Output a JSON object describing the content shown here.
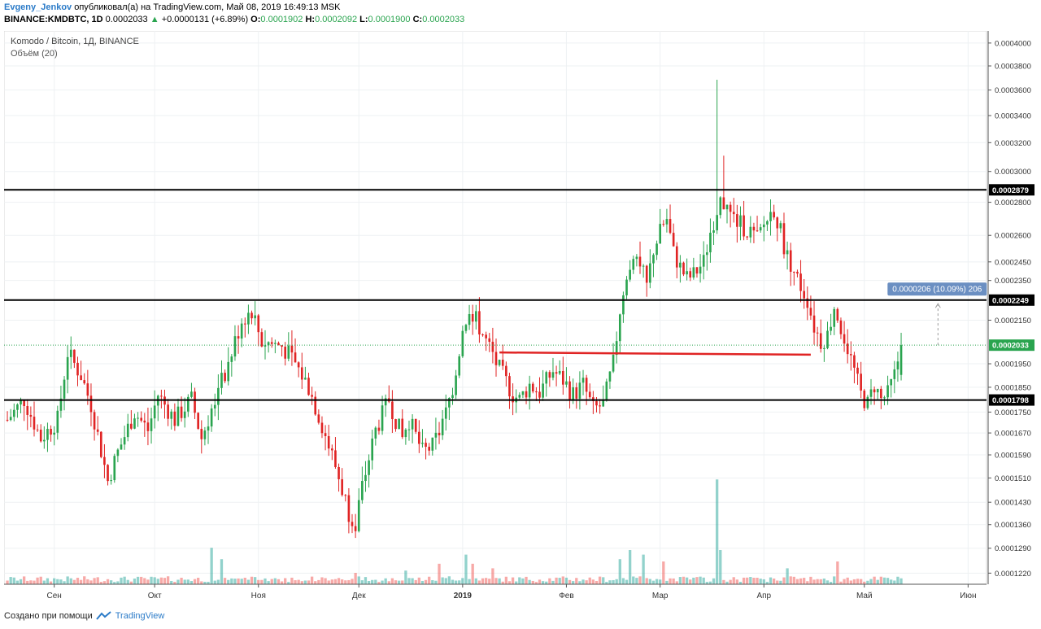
{
  "header": {
    "user": "Evgeny_Jenkov",
    "published_text": "опубликовал(а) на TradingView.com, Май 08, 2019 16:49:13 MSK",
    "symbol": "BINANCE:KMDBTC, 1D",
    "last": "0.0002033",
    "change_arrow": "▲",
    "change": "+0.0000131 (+6.89%)",
    "o_label": "O:",
    "o": "0.0001902",
    "h_label": "H:",
    "h": "0.0002092",
    "l_label": "L:",
    "l": "0.0001900",
    "c_label": "C:",
    "c": "0.0002033"
  },
  "legend": {
    "title": "Komodo / Bitcoin, 1Д, BINANCE",
    "volume": "Объём (20)"
  },
  "footer": {
    "text": "Создано при помощи",
    "brand": "TradingView",
    "logo_icon": "tradingview-logo-icon"
  },
  "chart_data": {
    "type": "candlestick",
    "symbol": "KMD/BTC",
    "y_scale": "log",
    "ylim": [
      0.000119,
      0.000411
    ],
    "price_ticks": [
      "0.0004000",
      "0.0003800",
      "0.0003600",
      "0.0003400",
      "0.0003200",
      "0.0003000",
      "0.0002800",
      "0.0002600",
      "0.0002450",
      "0.0002350",
      "0.0002150",
      "0.0001950",
      "0.0001850",
      "0.0001750",
      "0.0001670",
      "0.0001590",
      "0.0001510",
      "0.0001430",
      "0.0001360",
      "0.0001290",
      "0.0001220"
    ],
    "x_ticks": [
      "Сен",
      "Окт",
      "Ноя",
      "Дек",
      "2019",
      "Фев",
      "Мар",
      "Апр",
      "Май",
      "Июн"
    ],
    "x_tick_days": [
      14,
      44,
      75,
      105,
      136,
      167,
      195,
      226,
      256,
      287
    ],
    "total_days": 293,
    "bold_ticks": [
      "2019"
    ],
    "horizontal_levels": [
      {
        "price": 0.0002879,
        "label": "0.0002879",
        "color": "#000000"
      },
      {
        "price": 0.0002249,
        "label": "0.0002249",
        "color": "#000000"
      },
      {
        "price": 0.0001798,
        "label": "0.0001798",
        "color": "#000000"
      }
    ],
    "current_price": {
      "price": 0.0002033,
      "label": "0.0002033",
      "color": "#2aa44f"
    },
    "trendline": {
      "from_day": 147,
      "to_day": 240,
      "from_price": 0.0002,
      "to_price": 0.000199,
      "color": "#e02424"
    },
    "measure": {
      "label": "0.0000206 (10.09%) 206",
      "day": 278,
      "from": 0.0002033,
      "to": 0.0002239
    },
    "keypoints": [
      [
        0,
        0.000172
      ],
      [
        5,
        0.00018
      ],
      [
        10,
        0.000165
      ],
      [
        15,
        0.000172
      ],
      [
        18,
        0.0002
      ],
      [
        22,
        0.00019
      ],
      [
        25,
        0.000178
      ],
      [
        30,
        0.00015
      ],
      [
        33,
        0.00016
      ],
      [
        38,
        0.000175
      ],
      [
        42,
        0.000168
      ],
      [
        45,
        0.000182
      ],
      [
        50,
        0.000172
      ],
      [
        55,
        0.00018
      ],
      [
        58,
        0.000165
      ],
      [
        62,
        0.00018
      ],
      [
        66,
        0.000195
      ],
      [
        70,
        0.000215
      ],
      [
        73,
        0.00022
      ],
      [
        76,
        0.000205
      ],
      [
        82,
        0.000203
      ],
      [
        86,
        0.000195
      ],
      [
        90,
        0.000185
      ],
      [
        94,
        0.00017
      ],
      [
        98,
        0.000155
      ],
      [
        102,
        0.00014
      ],
      [
        104,
        0.000137
      ],
      [
        106,
        0.000148
      ],
      [
        110,
        0.000168
      ],
      [
        114,
        0.00018
      ],
      [
        118,
        0.000165
      ],
      [
        120,
        0.000172
      ],
      [
        124,
        0.00016
      ],
      [
        127,
        0.000162
      ],
      [
        130,
        0.00017
      ],
      [
        133,
        0.000185
      ],
      [
        136,
        0.00021
      ],
      [
        138,
        0.000222
      ],
      [
        140,
        0.000215
      ],
      [
        143,
        0.000205
      ],
      [
        145,
        0.000198
      ],
      [
        148,
        0.00019
      ],
      [
        151,
        0.000182
      ],
      [
        153,
        0.00018
      ],
      [
        156,
        0.000186
      ],
      [
        159,
        0.000183
      ],
      [
        163,
        0.000192
      ],
      [
        166,
        0.000188
      ],
      [
        169,
        0.000182
      ],
      [
        172,
        0.000186
      ],
      [
        175,
        0.000176
      ],
      [
        178,
        0.000178
      ],
      [
        181,
        0.000195
      ],
      [
        183,
        0.00022
      ],
      [
        185,
        0.000235
      ],
      [
        187,
        0.000252
      ],
      [
        189,
        0.000245
      ],
      [
        191,
        0.000232
      ],
      [
        193,
        0.000252
      ],
      [
        195,
        0.000262
      ],
      [
        197,
        0.00027
      ],
      [
        199,
        0.00025
      ],
      [
        201,
        0.000242
      ],
      [
        203,
        0.000236
      ],
      [
        205,
        0.000238
      ],
      [
        208,
        0.000245
      ],
      [
        210,
        0.000262
      ],
      [
        212,
        0.000276
      ],
      [
        214,
        0.00028
      ],
      [
        216,
        0.000272
      ],
      [
        218,
        0.000268
      ],
      [
        220,
        0.000265
      ],
      [
        222,
        0.000262
      ],
      [
        224,
        0.000258
      ],
      [
        227,
        0.00027
      ],
      [
        229,
        0.000276
      ],
      [
        231,
        0.000262
      ],
      [
        233,
        0.000248
      ],
      [
        235,
        0.00024
      ],
      [
        237,
        0.000232
      ],
      [
        239,
        0.000225
      ],
      [
        241,
        0.000212
      ],
      [
        243,
        0.000205
      ],
      [
        245,
        0.000208
      ],
      [
        247,
        0.000222
      ],
      [
        249,
        0.000212
      ],
      [
        251,
        0.000202
      ],
      [
        253,
        0.000192
      ],
      [
        255,
        0.000182
      ],
      [
        257,
        0.000178
      ],
      [
        259,
        0.000186
      ],
      [
        261,
        0.00018
      ],
      [
        263,
        0.000182
      ],
      [
        265,
        0.00019
      ],
      [
        267,
        0.000203
      ]
    ],
    "volume_spikes": [
      [
        212,
        0.92
      ],
      [
        213,
        0.3
      ],
      [
        186,
        0.3
      ],
      [
        190,
        0.26
      ],
      [
        61,
        0.32
      ],
      [
        64,
        0.22
      ],
      [
        137,
        0.26
      ],
      [
        139,
        0.18
      ],
      [
        183,
        0.22
      ],
      [
        196,
        0.2
      ],
      [
        248,
        0.2
      ],
      [
        233,
        0.14
      ],
      [
        104,
        0.1
      ],
      [
        119,
        0.12
      ],
      [
        129,
        0.18
      ],
      [
        145,
        0.14
      ]
    ],
    "series_colors": {
      "up": "#26a69a",
      "down": "#ef5350",
      "candle_up": "#2aa44f",
      "candle_down": "#e02424"
    }
  }
}
